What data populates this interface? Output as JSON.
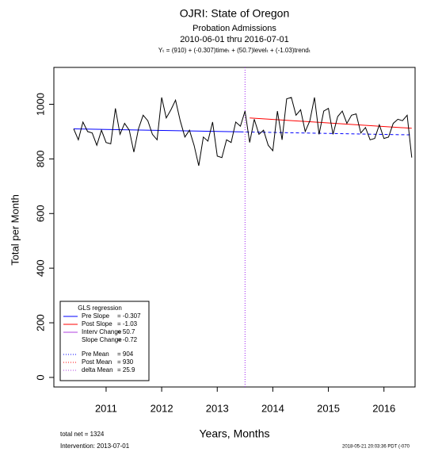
{
  "chart_data": {
    "type": "line",
    "title": "OJRI: State of Oregon",
    "subtitle": "Probation Admissions",
    "date_range": "2010-06-01 thru 2016-07-01",
    "equation": "Yₜ = (910) + (-0.307)timeₜ + (50.7)levelₜ + (-1.03)trendₜ",
    "x_label": "Years, Months",
    "y_label": "Total per Month",
    "footer_left": [
      "total net = 1324",
      "Intervention: 2013-07-01"
    ],
    "footer_right": "2018-05-21 20:03:36 PDT (-070",
    "xlim": [
      2010.06,
      2016.56
    ],
    "ylim": [
      -35,
      1135
    ],
    "xticks": [
      2011,
      2012,
      2013,
      2014,
      2015,
      2016
    ],
    "yticks": [
      0,
      200,
      400,
      600,
      800,
      1000
    ],
    "intervention_x": 2013.5,
    "series": [
      {
        "color": "#000000",
        "x": [
          2010.417,
          2010.5,
          2010.583,
          2010.667,
          2010.75,
          2010.833,
          2010.917,
          2011,
          2011.083,
          2011.167,
          2011.25,
          2011.333,
          2011.417,
          2011.5,
          2011.583,
          2011.667,
          2011.75,
          2011.833,
          2011.917,
          2012,
          2012.083,
          2012.167,
          2012.25,
          2012.333,
          2012.417,
          2012.5,
          2012.583,
          2012.667,
          2012.75,
          2012.833,
          2012.917,
          2013,
          2013.083,
          2013.167,
          2013.25,
          2013.333,
          2013.417,
          2013.5,
          2013.583,
          2013.667,
          2013.75,
          2013.833,
          2013.917,
          2014,
          2014.083,
          2014.167,
          2014.25,
          2014.333,
          2014.417,
          2014.5,
          2014.583,
          2014.667,
          2014.75,
          2014.833,
          2014.917,
          2015,
          2015.083,
          2015.167,
          2015.25,
          2015.333,
          2015.417,
          2015.5,
          2015.583,
          2015.667,
          2015.75,
          2015.833,
          2015.917,
          2016,
          2016.083,
          2016.167,
          2016.25,
          2016.333,
          2016.417,
          2016.5
        ],
        "values": [
          910,
          870,
          935,
          900,
          895,
          850,
          905,
          860,
          855,
          985,
          890,
          930,
          905,
          825,
          910,
          960,
          940,
          890,
          870,
          1025,
          950,
          980,
          1015,
          940,
          880,
          905,
          850,
          775,
          880,
          865,
          935,
          810,
          805,
          870,
          860,
          935,
          920,
          975,
          860,
          945,
          890,
          905,
          850,
          830,
          975,
          870,
          1020,
          1025,
          960,
          980,
          900,
          940,
          1025,
          890,
          975,
          985,
          890,
          955,
          975,
          930,
          960,
          965,
          895,
          915,
          870,
          875,
          925,
          875,
          880,
          930,
          945,
          940,
          960,
          805
        ]
      }
    ],
    "fit_lines": [
      {
        "color": "#0000ff",
        "dashed": false,
        "x": [
          2010.417,
          2013.417
        ],
        "values": [
          910,
          899
        ]
      },
      {
        "color": "#0000ff",
        "dashed": true,
        "x": [
          2013.417,
          2016.5
        ],
        "values": [
          899,
          888
        ]
      },
      {
        "color": "#ff0000",
        "dashed": false,
        "x": [
          2013.583,
          2016.5
        ],
        "values": [
          950,
          912
        ]
      }
    ],
    "legend": {
      "title": "GLS regression",
      "entries": [
        {
          "label": "Pre Slope",
          "value": "= -0.307",
          "color": "#0000ff",
          "dotted": false
        },
        {
          "label": "Post Slope",
          "value": "= -1.03",
          "color": "#ff0000",
          "dotted": false
        },
        {
          "label": "Interv Change",
          "value": "= 50.7",
          "color": "#b040e0",
          "dotted": false
        },
        {
          "label": "Slope Change",
          "value": "= -0.72"
        },
        {
          "label": "Pre Mean",
          "value": "= 904",
          "color": "#0000ff",
          "dotted": true
        },
        {
          "label": "Post Mean",
          "value": "= 930",
          "color": "#ff0000",
          "dotted": true
        },
        {
          "label": "delta Mean",
          "value": "= 25.9",
          "color": "#b040e0",
          "dotted": true
        }
      ]
    }
  }
}
